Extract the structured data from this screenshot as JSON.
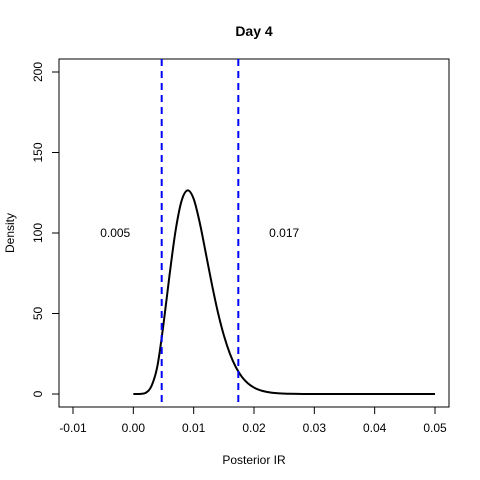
{
  "chart_data": {
    "type": "line",
    "title": "Day 4",
    "xlabel": "Posterior IR",
    "ylabel": "Density",
    "xlim": [
      -0.01,
      0.05
    ],
    "ylim": [
      0,
      200
    ],
    "xticks": [
      -0.01,
      0.0,
      0.01,
      0.02,
      0.03,
      0.04,
      0.05
    ],
    "xtick_labels": [
      "-0.01",
      "0.00",
      "0.01",
      "0.02",
      "0.03",
      "0.04",
      "0.05"
    ],
    "yticks": [
      0,
      50,
      100,
      150,
      200
    ],
    "ytick_labels": [
      "0",
      "50",
      "100",
      "150",
      "200"
    ],
    "grid": false,
    "series": [
      {
        "color": "#000000",
        "x": [
          0.0,
          0.001,
          0.002,
          0.003,
          0.004,
          0.005,
          0.006,
          0.007,
          0.008,
          0.009,
          0.01,
          0.011,
          0.012,
          0.013,
          0.014,
          0.015,
          0.016,
          0.017,
          0.018,
          0.019,
          0.02,
          0.021,
          0.022,
          0.023,
          0.024,
          0.025,
          0.026,
          0.028,
          0.03,
          0.035,
          0.04,
          0.045,
          0.05
        ],
        "y": [
          0,
          0.02,
          0.6,
          4.9,
          17.6,
          43.4,
          73.8,
          101.4,
          120.0,
          126.5,
          121.2,
          106.5,
          87.7,
          68.5,
          51.0,
          36.5,
          25.1,
          16.6,
          10.6,
          6.6,
          4.0,
          2.4,
          1.4,
          0.8,
          0.45,
          0.25,
          0.13,
          0.04,
          0.01,
          0,
          0,
          0,
          0
        ]
      }
    ],
    "reference_lines": [
      {
        "x": 0.0047,
        "color": "#0000ff",
        "style": "dashed"
      },
      {
        "x": 0.0174,
        "color": "#0000ff",
        "style": "dashed"
      }
    ],
    "annotations": [
      {
        "text": "0.005",
        "x": -0.003,
        "y": 100
      },
      {
        "text": "0.017",
        "x": 0.025,
        "y": 100
      }
    ]
  }
}
